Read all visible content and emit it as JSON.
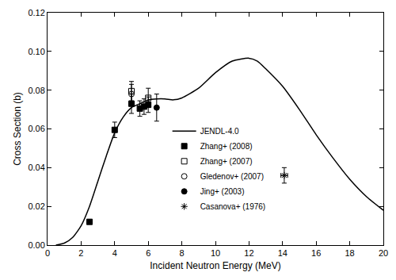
{
  "chart_data": {
    "type": "scatter",
    "x_label": "Incident Neutron Energy (MeV)",
    "y_label": "Cross Section (b)",
    "xlim": [
      0,
      20
    ],
    "ylim": [
      0,
      0.12
    ],
    "xticks": [
      0,
      2,
      4,
      6,
      8,
      10,
      12,
      14,
      16,
      18,
      20
    ],
    "yticks": [
      {
        "value": 0,
        "label": "0.00"
      },
      {
        "value": 0.02,
        "label": "0.02"
      },
      {
        "value": 0.04,
        "label": "0.04"
      },
      {
        "value": 0.06,
        "label": "0.06"
      },
      {
        "value": 0.08,
        "label": "0.08"
      },
      {
        "value": 0.1,
        "label": "0.10"
      },
      {
        "value": 0.12,
        "label": "0.12"
      }
    ],
    "grid": false,
    "legend": "center",
    "series": [
      {
        "name": "JENDL-4.0",
        "type": "line",
        "color": "#000000",
        "line_style": "solid",
        "x": [
          0.5,
          1.0,
          1.5,
          2.0,
          2.5,
          3.0,
          3.5,
          4.0,
          4.5,
          5.0,
          5.5,
          6.0,
          6.5,
          7.0,
          7.5,
          8.0,
          9.0,
          10.0,
          11.0,
          12.0,
          12.5,
          13.0,
          14.0,
          15.0,
          16.0,
          17.0,
          18.0,
          19.0,
          20.0
        ],
        "values": [
          0.0,
          0.001,
          0.004,
          0.01,
          0.02,
          0.033,
          0.046,
          0.058,
          0.066,
          0.071,
          0.073,
          0.075,
          0.0755,
          0.0755,
          0.075,
          0.076,
          0.081,
          0.089,
          0.095,
          0.0965,
          0.095,
          0.091,
          0.082,
          0.07,
          0.057,
          0.045,
          0.034,
          0.025,
          0.018
        ]
      },
      {
        "name": "Zhang+ (2008)",
        "type": "scatter",
        "color": "#000000",
        "marker": "square",
        "x": [
          2.5,
          4.0,
          5.0,
          5.5,
          5.75,
          6.0
        ],
        "values": [
          0.012,
          0.0595,
          0.073,
          0.0705,
          0.0715,
          0.0725
        ],
        "error": [
          0.001,
          0.004,
          0.005,
          0.004,
          0.004,
          0.004
        ]
      },
      {
        "name": "Zhang+ (2007)",
        "type": "scatter",
        "color": "#000000",
        "marker": "square-open",
        "x": [
          5.0,
          6.0
        ],
        "values": [
          0.0795,
          0.076
        ],
        "error": [
          0.005,
          0.005
        ]
      },
      {
        "name": "Gledenov+ (2007)",
        "type": "scatter",
        "color": "#000000",
        "marker": "circle-open",
        "x": [
          5.0
        ],
        "values": [
          0.078
        ],
        "error": [
          0.005
        ]
      },
      {
        "name": "Jing+ (2003)",
        "type": "scatter",
        "color": "#000000",
        "marker": "circle",
        "x": [
          6.5
        ],
        "values": [
          0.071
        ],
        "error": [
          0.007
        ]
      },
      {
        "name": "Casanova+ (1976)",
        "type": "scatter",
        "color": "#000000",
        "marker": "asterisk-open",
        "x": [
          14.1
        ],
        "values": [
          0.036
        ],
        "error": [
          0.004
        ],
        "xerror": [
          0.2
        ]
      }
    ]
  }
}
